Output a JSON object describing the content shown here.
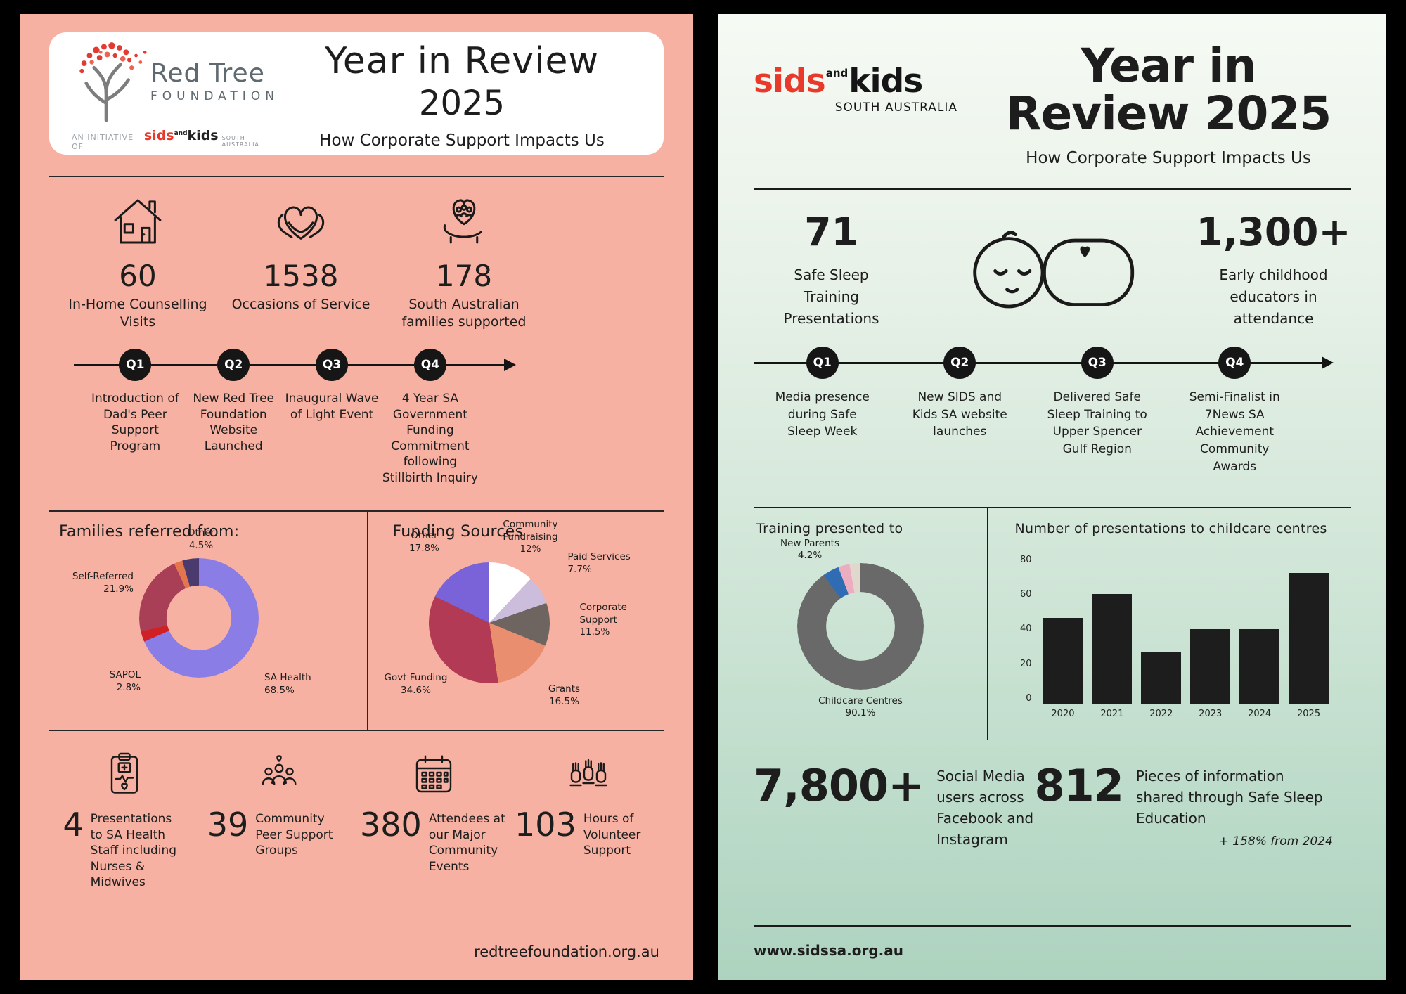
{
  "colors": {
    "left_background": "#f7b1a2",
    "sids_red": "#e8392b",
    "right_background_bottom": "#add3bf",
    "ink": "#1d1d1d"
  },
  "left_panel": {
    "logo": {
      "brand_line1": "Red Tree",
      "brand_line2": "FOUNDATION",
      "initiative_prefix": "AN INITIATIVE OF",
      "initiative_sids": "sids",
      "initiative_and": "and",
      "initiative_kids": "kids",
      "initiative_region": "SOUTH AUSTRALIA"
    },
    "title_line1": "Year in Review",
    "title_line2": "2025",
    "subtitle": "How Corporate Support Impacts Us",
    "top_stats": [
      {
        "value": "60",
        "label": "In-Home Counselling Visits"
      },
      {
        "value": "1538",
        "label": "Occasions of Service"
      },
      {
        "value": "178",
        "label": "South Australian families supported"
      }
    ],
    "timeline": [
      {
        "q": "Q1",
        "label": "Introduction of Dad's Peer Support Program"
      },
      {
        "q": "Q2",
        "label": "New Red Tree Foundation Website Launched"
      },
      {
        "q": "Q3",
        "label": "Inaugural Wave of Light Event"
      },
      {
        "q": "Q4",
        "label": "4 Year SA Government Funding Commitment following Stillbirth Inquiry"
      }
    ],
    "bottom_stats": [
      {
        "value": "4",
        "label": "Presentations to SA Health Staff including Nurses & Midwives"
      },
      {
        "value": "39",
        "label": "Community Peer Support Groups"
      },
      {
        "value": "380",
        "label": "Attendees at our Major Community Events"
      },
      {
        "value": "103",
        "label": "Hours of Volunteer Support"
      }
    ],
    "footer": "redtreefoundation.org.au"
  },
  "right_panel": {
    "logo": {
      "sids": "sids",
      "and": "and",
      "kids": "kids",
      "region": "SOUTH AUSTRALIA"
    },
    "title_line1": "Year in",
    "title_line2": "Review 2025",
    "subtitle": "How Corporate Support Impacts Us",
    "top_stats": [
      {
        "value": "71",
        "label": "Safe Sleep Training Presentations"
      },
      {
        "value": "1,300+",
        "label": "Early childhood educators in attendance"
      }
    ],
    "timeline": [
      {
        "q": "Q1",
        "label": "Media presence during Safe Sleep Week"
      },
      {
        "q": "Q2",
        "label": "New SIDS and Kids SA website launches"
      },
      {
        "q": "Q3",
        "label": "Delivered Safe Sleep Training to Upper Spencer Gulf Region"
      },
      {
        "q": "Q4",
        "label": "Semi-Finalist in 7News SA Achievement Community Awards"
      }
    ],
    "bottom_stats": [
      {
        "value": "7,800+",
        "label": "Social Media users across Facebook and Instagram"
      },
      {
        "value": "812",
        "label": "Pieces of information shared through Safe Sleep Education",
        "note": "+ 158% from 2024"
      }
    ],
    "footer": "www.sidssa.org.au"
  },
  "chart_data": [
    {
      "id": "families-referred",
      "type": "pie",
      "donut": true,
      "title": "Families referred from:",
      "slices": [
        {
          "label": "SA Health",
          "pct": "68.5%",
          "value": 68.5,
          "color": "#8a7de5"
        },
        {
          "label": "SAPOL",
          "pct": "2.8%",
          "value": 2.8,
          "color": "#d02024"
        },
        {
          "label": "Self-Referred",
          "pct": "21.9%",
          "value": 21.9,
          "color": "#a93e57"
        },
        {
          "label": "",
          "pct": "",
          "value": 2.3,
          "color": "#e4764e"
        },
        {
          "label": "Other",
          "pct": "4.5%",
          "value": 4.5,
          "color": "#4a3a6e"
        }
      ]
    },
    {
      "id": "funding-sources",
      "type": "pie",
      "donut": false,
      "title": "Funding Sources",
      "slices": [
        {
          "label": "Community Fundraising",
          "pct": "12%",
          "value": 12,
          "color": "#ffffff"
        },
        {
          "label": "Paid Services",
          "pct": "7.7%",
          "value": 7.7,
          "color": "#cbbddb"
        },
        {
          "label": "Corporate Support",
          "pct": "11.5%",
          "value": 11.5,
          "color": "#6e6560"
        },
        {
          "label": "Grants",
          "pct": "16.5%",
          "value": 16.5,
          "color": "#ea8e70"
        },
        {
          "label": "Govt Funding",
          "pct": "34.6%",
          "value": 34.6,
          "color": "#b23a55"
        },
        {
          "label": "Other",
          "pct": "17.8%",
          "value": 17.8,
          "color": "#7a62d8"
        }
      ]
    },
    {
      "id": "training-presented",
      "type": "pie",
      "donut": true,
      "title": "Training presented to",
      "slices": [
        {
          "label": "Childcare Centres",
          "pct": "90.1%",
          "value": 90.1,
          "color": "#696969"
        },
        {
          "label": "New Parents",
          "pct": "4.2%",
          "value": 4.2,
          "color": "#2f6cb3"
        },
        {
          "label": "",
          "pct": "",
          "value": 2.9,
          "color": "#eaaec0"
        },
        {
          "label": "",
          "pct": "",
          "value": 2.8,
          "color": "#e0d8cc"
        }
      ]
    },
    {
      "id": "presentations-bar",
      "type": "bar",
      "title": "Number of presentations to childcare centres",
      "categories": [
        "2020",
        "2021",
        "2022",
        "2023",
        "2024",
        "2025"
      ],
      "values": [
        46,
        59,
        28,
        40,
        40,
        70
      ],
      "ylim": [
        0,
        80
      ],
      "yticks": [
        0,
        20,
        40,
        60,
        80
      ],
      "bar_color": "#1d1d1d"
    }
  ]
}
